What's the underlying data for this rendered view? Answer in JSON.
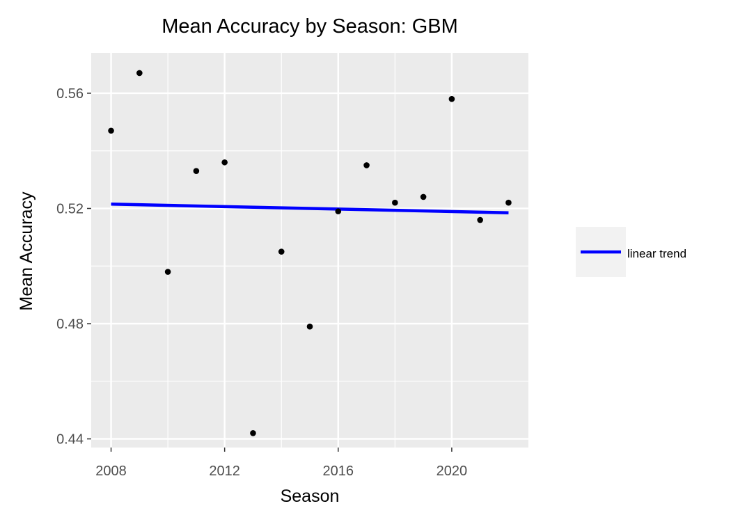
{
  "chart_data": {
    "type": "scatter",
    "title": "Mean Accuracy by Season: GBM",
    "xlabel": "Season",
    "ylabel": "Mean Accuracy",
    "xlim": [
      2007.3,
      2022.7
    ],
    "ylim": [
      0.437,
      0.574
    ],
    "xticks": [
      2008,
      2012,
      2016,
      2020
    ],
    "xtick_labels": [
      "2008",
      "2012",
      "2016",
      "2020"
    ],
    "yticks": [
      0.44,
      0.48,
      0.52,
      0.56
    ],
    "ytick_labels": [
      "0.44",
      "0.48",
      "0.52",
      "0.56"
    ],
    "grid": true,
    "points": {
      "x": [
        2008,
        2009,
        2010,
        2011,
        2012,
        2013,
        2014,
        2015,
        2016,
        2017,
        2018,
        2019,
        2020,
        2021,
        2022
      ],
      "y": [
        0.547,
        0.567,
        0.498,
        0.533,
        0.536,
        0.442,
        0.505,
        0.479,
        0.519,
        0.535,
        0.522,
        0.524,
        0.558,
        0.516,
        0.522
      ]
    },
    "trend": {
      "name": "linear trend",
      "x": [
        2008,
        2022
      ],
      "y": [
        0.5215,
        0.5185
      ]
    },
    "legend_position": "right",
    "colors": {
      "panel": "#ebebeb",
      "grid": "#ffffff",
      "points": "#000000",
      "trend": "#0000ff",
      "legend_key": "#f2f2f2"
    }
  }
}
